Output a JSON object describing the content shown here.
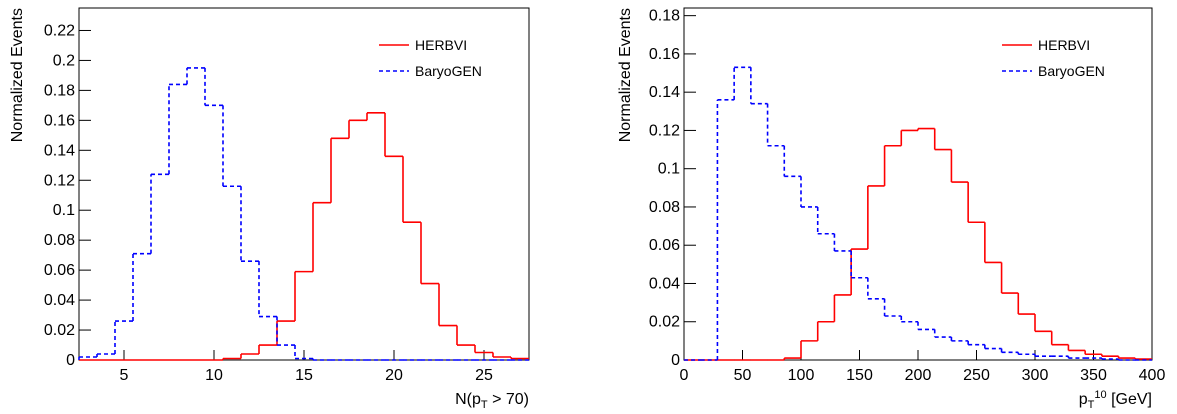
{
  "chart_data": [
    {
      "type": "histogram",
      "y_label": "Normalized Events",
      "x_label": [
        {
          "text": "N(p"
        },
        {
          "text": "T",
          "shift": "sub"
        },
        {
          "text": " > 70)"
        }
      ],
      "bins": [
        2.5,
        3.5,
        4.5,
        5.5,
        6.5,
        7.5,
        8.5,
        9.5,
        10.5,
        11.5,
        12.5,
        13.5,
        14.5,
        15.5,
        16.5,
        17.5,
        18.5,
        19.5,
        20.5,
        21.5,
        22.5,
        23.5,
        24.5,
        25.5,
        26.5,
        27.5
      ],
      "series": [
        {
          "name": "HERBVI",
          "color": "#ff0000",
          "dash": "solid",
          "values": [
            0,
            0,
            0,
            0,
            0,
            0,
            0,
            0,
            0.001,
            0.004,
            0.01,
            0.026,
            0.059,
            0.105,
            0.148,
            0.16,
            0.165,
            0.136,
            0.092,
            0.051,
            0.023,
            0.01,
            0.005,
            0.002,
            0.001
          ]
        },
        {
          "name": "BaryoGEN",
          "color": "#0000ff",
          "dash": "dashed",
          "values": [
            0.002,
            0.004,
            0.026,
            0.071,
            0.124,
            0.184,
            0.195,
            0.17,
            0.116,
            0.066,
            0.029,
            0.01,
            0.001,
            0,
            0,
            0,
            0,
            0,
            0,
            0,
            0,
            0,
            0,
            0,
            0
          ]
        }
      ],
      "xlim": [
        2.5,
        27.5
      ],
      "xticks": [
        5,
        10,
        15,
        20,
        25
      ],
      "ylim": [
        0,
        0.235
      ],
      "yticks": [
        0,
        0.02,
        0.04,
        0.06,
        0.08,
        0.1,
        0.12,
        0.14,
        0.16,
        0.18,
        0.2,
        0.22
      ],
      "legend": "top-right"
    },
    {
      "type": "histogram",
      "y_label": "Normalized Events",
      "x_label": [
        {
          "text": "p"
        },
        {
          "text": "T",
          "shift": "sub"
        },
        {
          "text": "10",
          "shift": "super"
        },
        {
          "text": " [GeV]"
        }
      ],
      "bins": [
        0,
        14.29,
        28.57,
        42.86,
        57.14,
        71.43,
        85.71,
        100,
        114.29,
        128.57,
        142.86,
        157.14,
        171.43,
        185.71,
        200,
        214.29,
        228.57,
        242.86,
        257.14,
        271.43,
        285.71,
        300,
        314.29,
        328.57,
        342.86,
        357.14,
        371.43,
        385.71,
        400
      ],
      "series": [
        {
          "name": "HERBVI",
          "color": "#ff0000",
          "dash": "solid",
          "values": [
            0,
            0,
            0,
            0,
            0,
            0,
            0.001,
            0.01,
            0.02,
            0.034,
            0.058,
            0.091,
            0.112,
            0.12,
            0.121,
            0.11,
            0.093,
            0.072,
            0.051,
            0.035,
            0.024,
            0.015,
            0.008,
            0.005,
            0.003,
            0.002,
            0.001,
            0.0005
          ]
        },
        {
          "name": "BaryoGEN",
          "color": "#0000ff",
          "dash": "dashed",
          "values": [
            0,
            0,
            0.136,
            0.153,
            0.134,
            0.112,
            0.096,
            0.08,
            0.066,
            0.057,
            0.043,
            0.032,
            0.023,
            0.02,
            0.016,
            0.012,
            0.01,
            0.008,
            0.006,
            0.004,
            0.003,
            0.002,
            0.002,
            0.001,
            0.001,
            0.0005,
            0,
            0
          ]
        }
      ],
      "xlim": [
        0,
        400
      ],
      "xticks": [
        0,
        50,
        100,
        150,
        200,
        250,
        300,
        350,
        400
      ],
      "ylim": [
        0,
        0.184
      ],
      "yticks": [
        0,
        0.02,
        0.04,
        0.06,
        0.08,
        0.1,
        0.12,
        0.14,
        0.16,
        0.18
      ],
      "legend": "top-right"
    }
  ]
}
